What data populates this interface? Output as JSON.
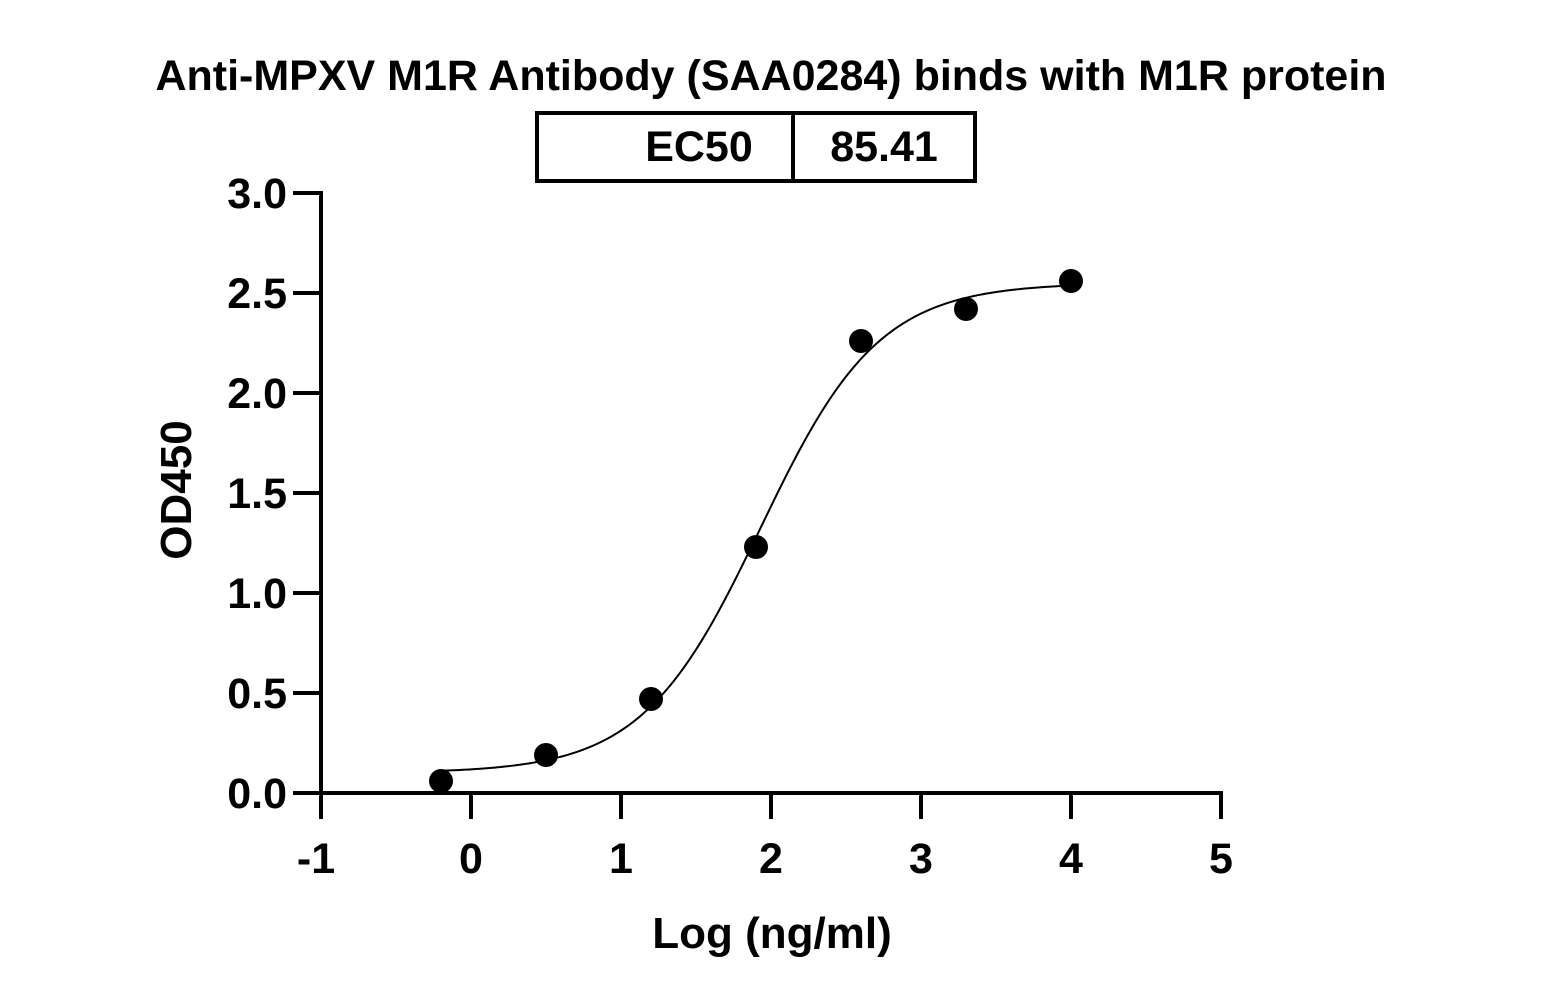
{
  "chart_data": {
    "type": "scatter",
    "title": "Anti-MPXV M1R Antibody (SAA0284) binds with  M1R protein",
    "xlabel": "Log (ng/ml)",
    "ylabel": "OD450",
    "xlim": [
      -1,
      5
    ],
    "ylim": [
      0,
      3
    ],
    "x_ticks": [
      "-1",
      "0",
      "1",
      "2",
      "3",
      "4",
      "5"
    ],
    "y_ticks": [
      "0.0",
      "0.5",
      "1.0",
      "1.5",
      "2.0",
      "2.5",
      "3.0"
    ],
    "grid": false,
    "legend": "none",
    "series": [
      {
        "points": [
          {
            "x": -0.2,
            "y": 0.06
          },
          {
            "x": 0.5,
            "y": 0.19
          },
          {
            "x": 1.2,
            "y": 0.47
          },
          {
            "x": 1.9,
            "y": 1.23
          },
          {
            "x": 2.6,
            "y": 2.26
          },
          {
            "x": 3.3,
            "y": 2.42
          },
          {
            "x": 4.0,
            "y": 2.56
          }
        ]
      }
    ],
    "fit_curve": {
      "model": "4PL",
      "bottom": 0.1,
      "top": 2.55,
      "log_ec50": 1.93,
      "hill_slope": 1.1,
      "x_range": [
        -0.2,
        4.0
      ]
    },
    "annotation_table": {
      "label": "EC50",
      "value": "85.41"
    },
    "colors": {
      "points": "#000000",
      "curve": "#000000",
      "axes": "#000000",
      "background": "#ffffff"
    }
  }
}
